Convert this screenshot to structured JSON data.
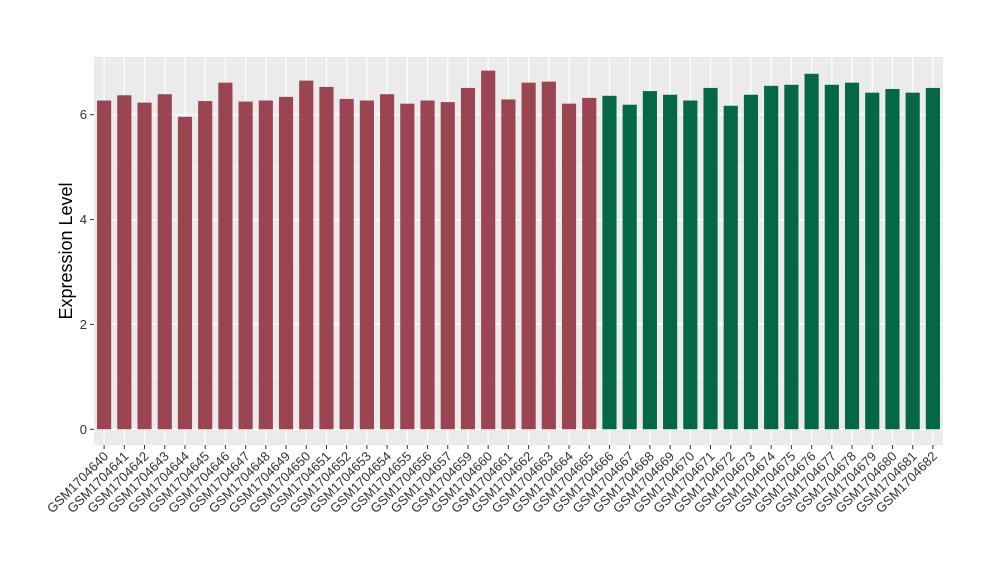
{
  "chart_data": {
    "type": "bar",
    "title": "",
    "xlabel": "",
    "ylabel": "Expression Level",
    "ylim": [
      -0.3,
      7.1
    ],
    "yticks": [
      0,
      2,
      4,
      6
    ],
    "grid": true,
    "background": "#ebebeb",
    "categories": [
      "GSM1704640",
      "GSM1704641",
      "GSM1704642",
      "GSM1704643",
      "GSM1704644",
      "GSM1704645",
      "GSM1704646",
      "GSM1704647",
      "GSM1704648",
      "GSM1704649",
      "GSM1704650",
      "GSM1704651",
      "GSM1704652",
      "GSM1704653",
      "GSM1704654",
      "GSM1704655",
      "GSM1704656",
      "GSM1704657",
      "GSM1704659",
      "GSM1704660",
      "GSM1704661",
      "GSM1704662",
      "GSM1704663",
      "GSM1704664",
      "GSM1704665",
      "GSM1704666",
      "GSM1704667",
      "GSM1704668",
      "GSM1704669",
      "GSM1704670",
      "GSM1704671",
      "GSM1704672",
      "GSM1704673",
      "GSM1704674",
      "GSM1704675",
      "GSM1704676",
      "GSM1704677",
      "GSM1704678",
      "GSM1704679",
      "GSM1704680",
      "GSM1704681",
      "GSM1704682"
    ],
    "values": [
      6.27,
      6.37,
      6.23,
      6.39,
      5.96,
      6.26,
      6.61,
      6.25,
      6.27,
      6.34,
      6.65,
      6.53,
      6.3,
      6.27,
      6.39,
      6.21,
      6.27,
      6.24,
      6.51,
      6.84,
      6.29,
      6.61,
      6.63,
      6.21,
      6.32,
      6.36,
      6.19,
      6.45,
      6.38,
      6.27,
      6.51,
      6.17,
      6.38,
      6.55,
      6.57,
      6.78,
      6.57,
      6.61,
      6.42,
      6.49,
      6.42,
      6.51
    ],
    "bar_colors": {
      "group1": "#9b4452",
      "group2": "#046845",
      "group1_count": 25
    }
  }
}
